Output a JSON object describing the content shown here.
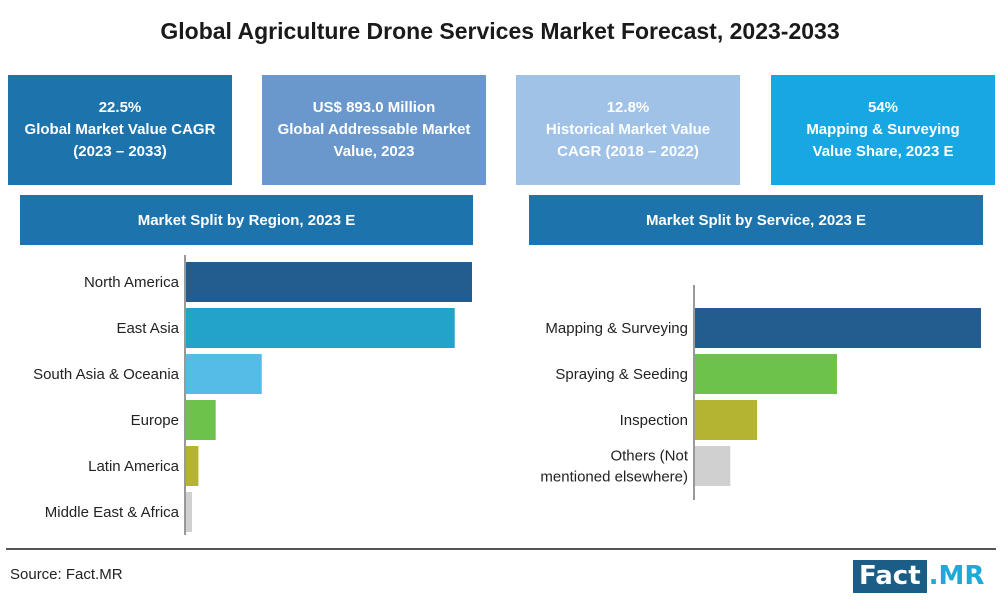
{
  "title": "Global Agriculture Drone Services Market Forecast, 2023-2033",
  "kpis": [
    {
      "line1": "22.5%",
      "line2": "Global Market Value CAGR",
      "line3": "(2023 – 2033)",
      "color": "#1d73ab"
    },
    {
      "line1": "US$ 893.0 Million",
      "line2": "Global Addressable Market",
      "line3": "Value, 2023",
      "color": "#6a97cc"
    },
    {
      "line1": "12.8%",
      "line2": "Historical Market Value",
      "line3": "CAGR (2018 – 2022)",
      "color": "#9fc2e6"
    },
    {
      "line1": "54%",
      "line2": "Mapping & Surveying",
      "line3": "Value Share, 2023 E",
      "color": "#17a7e3"
    }
  ],
  "chart_data": [
    {
      "type": "bar",
      "orientation": "horizontal",
      "title": "Market Split by Region, 2023 E",
      "categories": [
        "North America",
        "East Asia",
        "South Asia & Oceania",
        "Europe",
        "Latin America",
        "Middle East & Africa"
      ],
      "values": [
        100,
        94,
        27,
        11,
        5,
        2
      ],
      "colors": [
        "#235d90",
        "#23a3c9",
        "#55bce8",
        "#6cc24a",
        "#b5b332",
        "#d0d0d0"
      ],
      "header_color": "#1d73ab",
      "xlim": [
        0,
        100
      ]
    },
    {
      "type": "bar",
      "orientation": "horizontal",
      "title": "Market Split by Service, 2023 E",
      "categories": [
        "Mapping & Surveying",
        "Spraying & Seeding",
        "Inspection",
        "Others (Not mentioned elsewhere)"
      ],
      "category_lines": [
        [
          "Mapping & Surveying"
        ],
        [
          "Spraying & Seeding"
        ],
        [
          "Inspection"
        ],
        [
          "Others (Not",
          "mentioned elsewhere)"
        ]
      ],
      "values": [
        54,
        27,
        12,
        7
      ],
      "colors": [
        "#235d90",
        "#6cc24a",
        "#b5b332",
        "#d0d0d0"
      ],
      "header_color": "#1d73ab",
      "xlim": [
        0,
        54
      ]
    }
  ],
  "source": "Source: Fact.MR",
  "logo": {
    "part1": "Fact",
    "part2": ".MR"
  }
}
